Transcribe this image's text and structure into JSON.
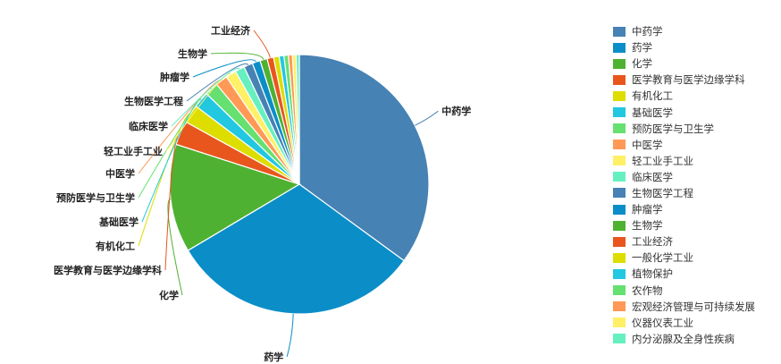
{
  "chart_data": {
    "type": "pie",
    "title": "",
    "slices": [
      {
        "label": "中药学",
        "value": 35.0,
        "color": "#4682b4"
      },
      {
        "label": "药学",
        "value": 31.4,
        "color": "#0b8ec8"
      },
      {
        "label": "化学",
        "value": 13.5,
        "color": "#4fb131"
      },
      {
        "label": "医学教育与医学边缘学科",
        "value": 3.0,
        "color": "#e8561d"
      },
      {
        "label": "有机化工",
        "value": 2.3,
        "color": "#dddd00"
      },
      {
        "label": "基础医学",
        "value": 2.0,
        "color": "#22c7e0"
      },
      {
        "label": "预防医学与卫生学",
        "value": 1.7,
        "color": "#66e070"
      },
      {
        "label": "中医学",
        "value": 1.5,
        "color": "#ff9955"
      },
      {
        "label": "轻工业手工业",
        "value": 1.3,
        "color": "#fff066"
      },
      {
        "label": "临床医学",
        "value": 1.2,
        "color": "#66f0c0"
      },
      {
        "label": "生物医学工程",
        "value": 1.1,
        "color": "#4682b4"
      },
      {
        "label": "肿瘤学",
        "value": 1.0,
        "color": "#0b8ec8"
      },
      {
        "label": "生物学",
        "value": 0.9,
        "color": "#4fb131"
      },
      {
        "label": "工业经济",
        "value": 0.8,
        "color": "#e8561d"
      },
      {
        "label": "一般化学工业",
        "value": 0.7,
        "color": "#dddd00"
      },
      {
        "label": "植物保护",
        "value": 0.6,
        "color": "#22c7e0"
      },
      {
        "label": "农作物",
        "value": 0.55,
        "color": "#66e070"
      },
      {
        "label": "宏观经济管理与可持续发展",
        "value": 0.5,
        "color": "#ff9955"
      },
      {
        "label": "仪器仪表工业",
        "value": 0.45,
        "color": "#fff066"
      },
      {
        "label": "内分泌腺及全身性疾病",
        "value": 0.4,
        "color": "#66f0c0"
      }
    ],
    "callouts": [
      "中药学",
      "药学",
      "化学",
      "医学教育与医学边缘学科",
      "有机化工",
      "基础医学",
      "预防医学与卫生学",
      "中医学",
      "轻工业手工业",
      "临床医学",
      "生物医学工程",
      "肿瘤学",
      "生物学",
      "工业经济"
    ],
    "legend_position": "right"
  }
}
